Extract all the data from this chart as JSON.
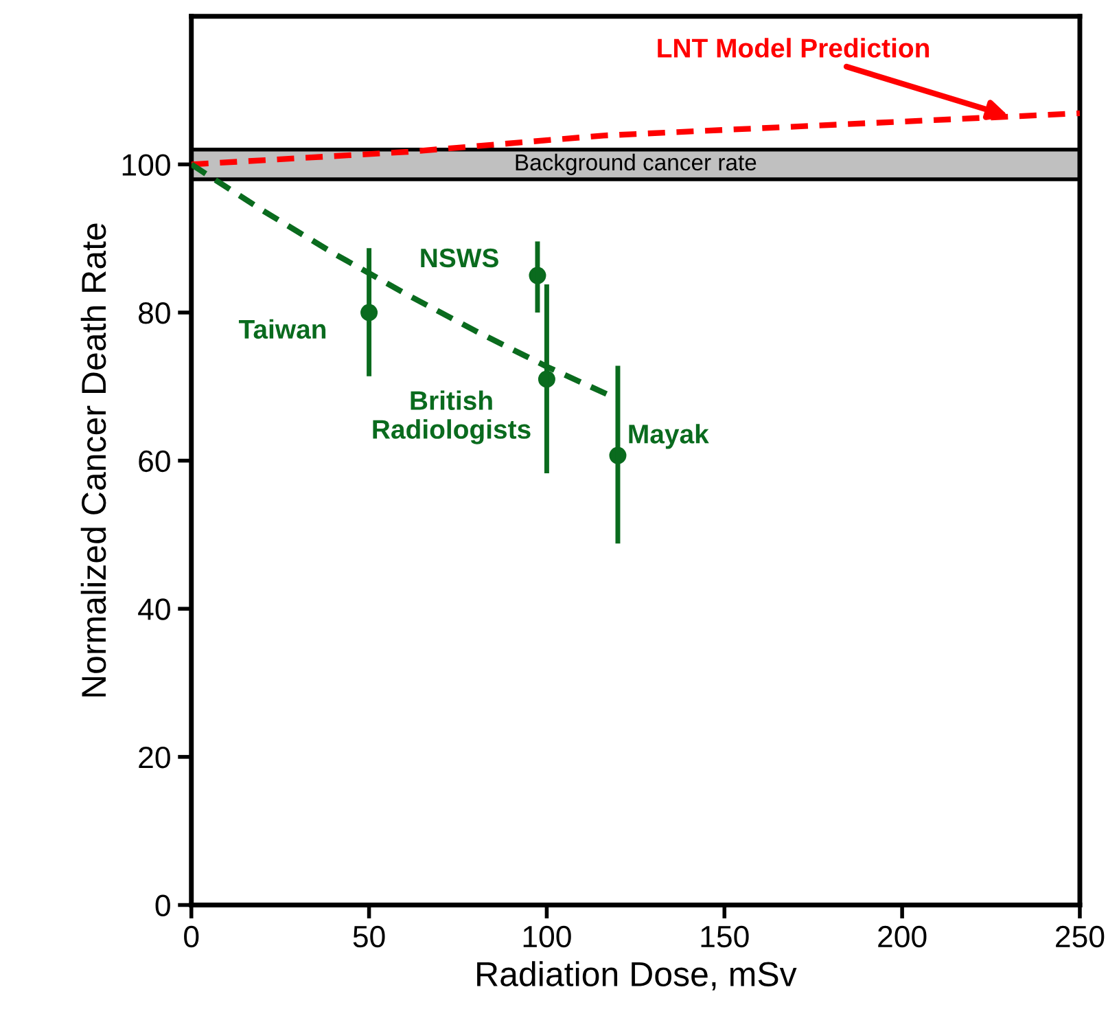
{
  "chart_data": {
    "type": "scatter",
    "xlabel": "Radiation Dose, mSv",
    "ylabel": "Normalized Cancer Death Rate",
    "xlim": [
      0,
      250
    ],
    "ylim": [
      0,
      120
    ],
    "xticks": [
      0,
      50,
      100,
      150,
      200,
      250
    ],
    "yticks": [
      0,
      20,
      40,
      60,
      80,
      100
    ],
    "grid": false,
    "legend": false,
    "bands": [
      {
        "axis": "y",
        "from": 98,
        "to": 102,
        "label": "Background cancer rate",
        "color": "#c0c0c0"
      }
    ],
    "series": [
      {
        "type": "line",
        "color": "#ff0000",
        "line_style": "dashed",
        "marker": "none",
        "x": [
          0,
          61,
          116,
          250
        ],
        "values": [
          100,
          101.7,
          103.9,
          106.9
        ]
      },
      {
        "type": "line",
        "color": "#0a6b1e",
        "line_style": "dashed",
        "marker": "none",
        "x": [
          0,
          20,
          40,
          60,
          80,
          100,
          120
        ],
        "values": [
          100,
          93.8,
          88.0,
          82.6,
          77.5,
          72.7,
          68.3
        ]
      },
      {
        "color": "#0a6b1e",
        "marker": "circle",
        "x": [
          50,
          97.4,
          100,
          120
        ],
        "values": [
          80,
          85,
          71,
          60.7
        ],
        "errors": [
          [
            71.4,
            88.7
          ],
          [
            80,
            89.6
          ],
          [
            58.3,
            83.8
          ],
          [
            48.8,
            72.8
          ]
        ]
      }
    ],
    "annotations": [
      {
        "text": "LNT Model Prediction",
        "x": 230,
        "y": 106.5
      },
      {
        "text": "Taiwan",
        "x": 50,
        "y": 80
      },
      {
        "text": "NSWS",
        "x": 97.4,
        "y": 85
      },
      {
        "text": "British\nRadiologists",
        "x": 100,
        "y": 71
      },
      {
        "text": "Mayak",
        "x": 120,
        "y": 60.7
      }
    ]
  }
}
